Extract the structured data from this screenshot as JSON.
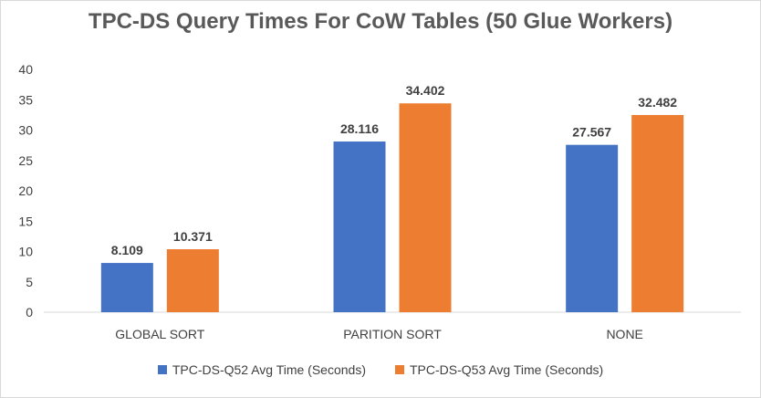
{
  "chart_data": {
    "type": "bar",
    "title": "TPC-DS Query Times For CoW Tables (50 Glue Workers)",
    "categories": [
      "GLOBAL SORT",
      "PARITION SORT",
      "NONE"
    ],
    "series": [
      {
        "name": "TPC-DS-Q52 Avg Time (Seconds)",
        "color": "#4472c4",
        "values": [
          8.109,
          28.116,
          27.567
        ]
      },
      {
        "name": "TPC-DS-Q53 Avg Time (Seconds)",
        "color": "#ed7d31",
        "values": [
          10.371,
          34.402,
          32.482
        ]
      }
    ],
    "yticks": [
      "0",
      "5",
      "10",
      "15",
      "20",
      "25",
      "30",
      "35",
      "40"
    ],
    "ylim": [
      0,
      40
    ],
    "xlabel": "",
    "ylabel": "",
    "grid": false,
    "legend_position": "bottom",
    "data_labels": true
  }
}
